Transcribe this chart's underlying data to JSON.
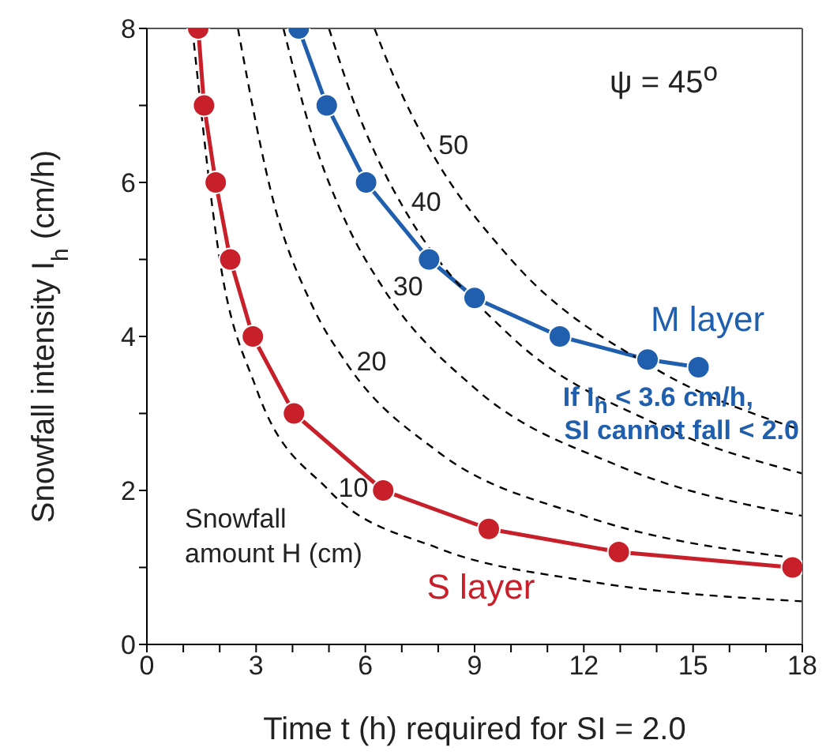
{
  "chart_data": {
    "type": "line",
    "xlabel": "Time t (h) required for SI = 2.0",
    "ylabel": "Snowfall intensity I$_{h}$ (cm/h)",
    "xlim": [
      0,
      18
    ],
    "xticks": [
      0,
      {
        "value": 1,
        "label": null
      },
      {
        "value": 2,
        "label": null
      },
      3,
      {
        "value": 4,
        "label": null
      },
      {
        "value": 5,
        "label": null
      },
      6,
      {
        "value": 7,
        "label": null
      },
      {
        "value": 8,
        "label": null
      },
      9,
      {
        "value": 10,
        "label": null
      },
      {
        "value": 11,
        "label": null
      },
      12,
      {
        "value": 13,
        "label": null
      },
      {
        "value": 14,
        "label": null
      },
      15,
      {
        "value": 16,
        "label": null
      },
      {
        "value": 17,
        "label": null
      },
      18
    ],
    "ylim": [
      0,
      8
    ],
    "yticks": [
      0,
      {
        "value": 1,
        "label": null
      },
      2,
      {
        "value": 3,
        "label": null
      },
      4,
      {
        "value": 5,
        "label": null
      },
      6,
      {
        "value": 7,
        "label": null
      },
      8
    ],
    "grid": false,
    "legend": false,
    "annotations": [
      "ψ = 45$^{o}$",
      "Snowfall amount H (cm)",
      "If I$_{h}$ < 3.6 cm/h,",
      "SI cannot fall < 2.0"
    ],
    "series": [
      {
        "name": "S layer",
        "color": "#c8202a",
        "marker": "circle",
        "line_style": "solid",
        "x": [
          1.41,
          1.57,
          1.89,
          2.29,
          2.91,
          4.04,
          6.49,
          9.39,
          12.96,
          17.73
        ],
        "values": [
          8,
          7,
          6,
          5,
          4,
          3,
          2,
          1.5,
          1.2,
          1.0
        ]
      },
      {
        "name": "M layer",
        "color": "#1f5fae",
        "marker": "circle",
        "line_style": "solid",
        "x": [
          4.17,
          4.94,
          6.02,
          7.75,
          9.0,
          11.34,
          13.75,
          15.15
        ],
        "values": [
          8,
          7,
          6,
          5,
          4.5,
          4.0,
          3.7,
          3.6
        ]
      },
      {
        "name": "10",
        "color": "#000000",
        "marker": "none",
        "line_style": "dashed",
        "x": [
          1.25,
          2,
          3,
          5,
          8,
          12,
          18
        ],
        "values": [
          8,
          5,
          3.33,
          2,
          1.25,
          0.83,
          0.56
        ]
      },
      {
        "name": "20",
        "color": "#000000",
        "marker": "none",
        "line_style": "dashed",
        "x": [
          2.5,
          3.5,
          4.5,
          5.5,
          8,
          12,
          18
        ],
        "values": [
          8,
          5.71,
          4.44,
          3.64,
          2.5,
          1.67,
          1.11
        ]
      },
      {
        "name": "30",
        "color": "#000000",
        "marker": "none",
        "line_style": "dashed",
        "x": [
          3.75,
          4.5,
          5.5,
          6.5,
          9,
          13,
          18
        ],
        "values": [
          8,
          6.67,
          5.45,
          4.62,
          3.33,
          2.31,
          1.67
        ]
      },
      {
        "name": "40",
        "color": "#000000",
        "marker": "none",
        "line_style": "dashed",
        "x": [
          5,
          5.75,
          6.5,
          7,
          10,
          14,
          18
        ],
        "values": [
          8,
          6.96,
          6.15,
          5.71,
          4,
          2.86,
          2.22
        ]
      },
      {
        "name": "50",
        "color": "#000000",
        "marker": "none",
        "line_style": "dashed",
        "x": [
          6.25,
          6.75,
          7.25,
          7.75,
          10,
          14,
          18
        ],
        "values": [
          8,
          7.41,
          6.9,
          6.45,
          5,
          3.57,
          2.78
        ]
      }
    ]
  }
}
